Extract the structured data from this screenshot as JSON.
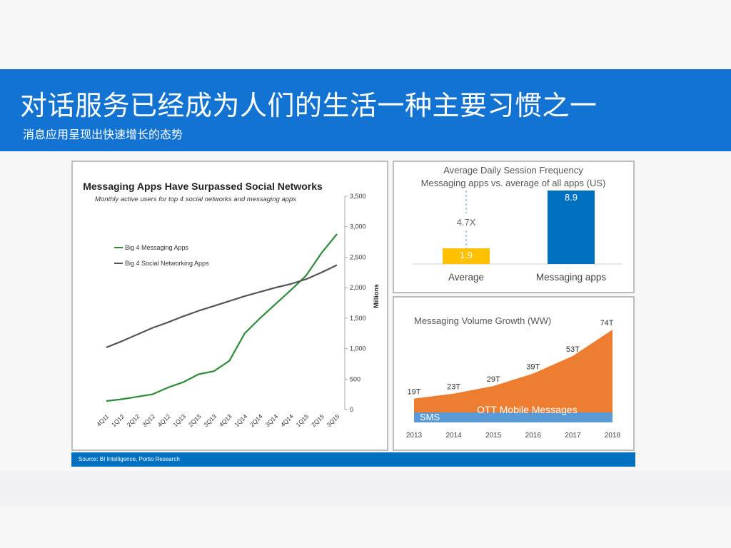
{
  "slide": {
    "title": "对话服务已经成为人们的生活一种主要习惯之一",
    "subtitle": "消息应用呈现出快速增长的态势",
    "source": "Source: BI Intelligence, Portio Research"
  },
  "colors": {
    "banner": "#1273d3",
    "messaging_line": "#2e8b3a",
    "social_line": "#555555",
    "average_bar": "#ffc000",
    "messaging_bar": "#0070c0",
    "ott_area": "#ed7d31",
    "sms_area": "#5b9bd5",
    "source_bar": "#0070c0"
  },
  "chart_data": [
    {
      "type": "line",
      "title": "Messaging Apps Have Surpassed Social Networks",
      "subtitle": "Monthly active users for top 4 social networks and messaging apps",
      "ylabel": "Millions",
      "ylim": [
        0,
        3500
      ],
      "yticks": [
        0,
        500,
        1000,
        1500,
        2000,
        2500,
        3000,
        3500
      ],
      "ytick_labels": [
        "0",
        "500",
        "1,000",
        "1,500",
        "2,000",
        "2,500",
        "3,000",
        "3,500"
      ],
      "categories": [
        "4Q11",
        "1Q12",
        "2Q12",
        "3Q12",
        "4Q12",
        "1Q13",
        "2Q13",
        "3Q13",
        "4Q13",
        "1Q14",
        "2Q14",
        "3Q14",
        "4Q14",
        "1Q15",
        "2Q15",
        "3Q15"
      ],
      "legend_position": "left",
      "series": [
        {
          "name": "Big 4 Messaging Apps",
          "color": "#2e8b3a",
          "values": [
            140,
            170,
            210,
            250,
            360,
            450,
            580,
            630,
            800,
            1250,
            1500,
            1730,
            1960,
            2200,
            2570,
            2880
          ]
        },
        {
          "name": "Big 4 Social Networking Apps",
          "color": "#555555",
          "values": [
            1020,
            1120,
            1230,
            1340,
            1430,
            1530,
            1620,
            1700,
            1780,
            1860,
            1930,
            2000,
            2060,
            2140,
            2250,
            2370
          ]
        }
      ]
    },
    {
      "type": "bar",
      "title": "Average Daily Session Frequency",
      "subtitle": "Messaging apps vs. average of all apps (US)",
      "categories": [
        "Average",
        "Messaging apps"
      ],
      "values": [
        1.9,
        8.9
      ],
      "value_labels": [
        "1.9",
        "8.9"
      ],
      "bar_colors": [
        "#ffc000",
        "#0070c0"
      ],
      "annotation": "4.7X",
      "ylim": [
        0,
        8.9
      ]
    },
    {
      "type": "area",
      "title": "Messaging Volume Growth (WW)",
      "x": [
        "2013",
        "2014",
        "2015",
        "2016",
        "2017",
        "2018"
      ],
      "point_labels": [
        "19T",
        "23T",
        "29T",
        "39T",
        "53T",
        "74T"
      ],
      "ylim": [
        0,
        74
      ],
      "series": [
        {
          "name": "SMS",
          "color": "#5b9bd5",
          "values": [
            8,
            8,
            8,
            8,
            8,
            8
          ]
        },
        {
          "name": "OTT Mobile Messages",
          "color": "#ed7d31",
          "values": [
            11,
            15,
            21,
            31,
            45,
            66
          ]
        }
      ],
      "totals": [
        19,
        23,
        29,
        39,
        53,
        74
      ]
    }
  ]
}
